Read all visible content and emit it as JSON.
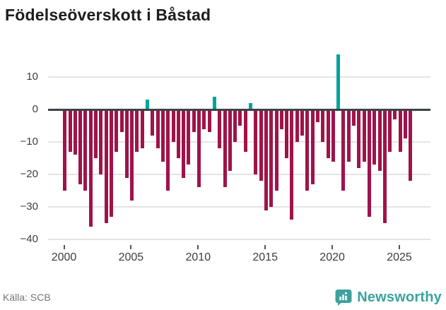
{
  "title": "Födelseöverskott i Båstad",
  "source": "Källa: SCB",
  "brand": {
    "name": "Newsworthy",
    "color": "#3ba29e"
  },
  "colors": {
    "negative_bar": "#a01349",
    "positive_bar": "#00a39e",
    "gridline": "#e4e4e4",
    "zero_line": "#3b4248",
    "axis_text": "#3d3d3d"
  },
  "chart_data": {
    "type": "bar",
    "title": "Födelseöverskott i Båstad",
    "xlabel": "",
    "ylabel": "",
    "x_start": 2000.07,
    "x_step": 0.3846,
    "values": [
      -25,
      -13,
      -14,
      -23,
      -25,
      -36,
      -15,
      -20,
      -35,
      -33,
      -13,
      -7,
      -21,
      -28,
      -13,
      -12,
      3,
      -8,
      -12,
      -16,
      -25,
      -10,
      -15,
      -21,
      -17,
      -7,
      -24,
      -6,
      -7,
      4,
      -12,
      -24,
      -19,
      -10,
      -5,
      -13,
      2,
      -20,
      -22,
      -31,
      -30,
      -25,
      -6,
      -15,
      -34,
      -10,
      -8,
      -25,
      -23,
      -4,
      -10,
      -15,
      -16,
      17,
      -25,
      -16,
      -5,
      -18,
      -16,
      -33,
      -17,
      -19,
      -35,
      -13,
      -3,
      -13,
      -9,
      -22
    ],
    "positive_indices": [
      16,
      29,
      36,
      53
    ],
    "yticks": [
      10,
      0,
      -10,
      -20,
      -30,
      -40
    ],
    "xticks": [
      2000,
      2005,
      2010,
      2015,
      2020,
      2025
    ],
    "ylim": [
      -40,
      17.5
    ],
    "grid": "horizontal only",
    "legend": "none"
  }
}
